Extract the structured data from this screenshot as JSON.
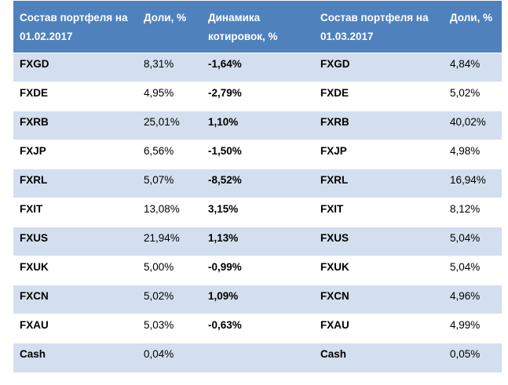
{
  "headers": {
    "col1": "Состав портфеля на 01.02.2017",
    "col2": "Доли, %",
    "col3": "Динамика котировок, %",
    "col4": "Состав портфеля на 01.03.2017",
    "col5": "Доли, %"
  },
  "rows": [
    {
      "ticker_feb": "FXGD",
      "share_feb": "8,31%",
      "dynamics": "-1,64%",
      "ticker_mar": "FXGD",
      "share_mar": "4,84%"
    },
    {
      "ticker_feb": "FXDE",
      "share_feb": "4,95%",
      "dynamics": "-2,79%",
      "ticker_mar": "FXDE",
      "share_mar": "5,02%"
    },
    {
      "ticker_feb": "FXRB",
      "share_feb": "25,01%",
      "dynamics": "1,10%",
      "ticker_mar": "FXRB",
      "share_mar": "40,02%"
    },
    {
      "ticker_feb": "FXJP",
      "share_feb": "6,56%",
      "dynamics": "-1,50%",
      "ticker_mar": "FXJP",
      "share_mar": "4,98%"
    },
    {
      "ticker_feb": "FXRL",
      "share_feb": "5,07%",
      "dynamics": "-8,52%",
      "ticker_mar": "FXRL",
      "share_mar": "16,94%"
    },
    {
      "ticker_feb": "FXIT",
      "share_feb": "13,08%",
      "dynamics": "3,15%",
      "ticker_mar": "FXIT",
      "share_mar": "8,12%"
    },
    {
      "ticker_feb": "FXUS",
      "share_feb": "21,94%",
      "dynamics": "1,13%",
      "ticker_mar": "FXUS",
      "share_mar": "5,04%"
    },
    {
      "ticker_feb": "FXUK",
      "share_feb": "5,00%",
      "dynamics": "-0,99%",
      "ticker_mar": "FXUK",
      "share_mar": "5,04%"
    },
    {
      "ticker_feb": "FXCN",
      "share_feb": "5,02%",
      "dynamics": "1,09%",
      "ticker_mar": "FXCN",
      "share_mar": "4,96%"
    },
    {
      "ticker_feb": "FXAU",
      "share_feb": "5,03%",
      "dynamics": "-0,63%",
      "ticker_mar": "FXAU",
      "share_mar": "4,99%"
    },
    {
      "ticker_feb": "Cash",
      "share_feb": "0,04%",
      "dynamics": "",
      "ticker_mar": "Cash",
      "share_mar": "0,05%"
    }
  ],
  "colors": {
    "header_bg": "#4f81bd",
    "band_bg": "#d3dfee",
    "header_text": "#ffffff"
  }
}
